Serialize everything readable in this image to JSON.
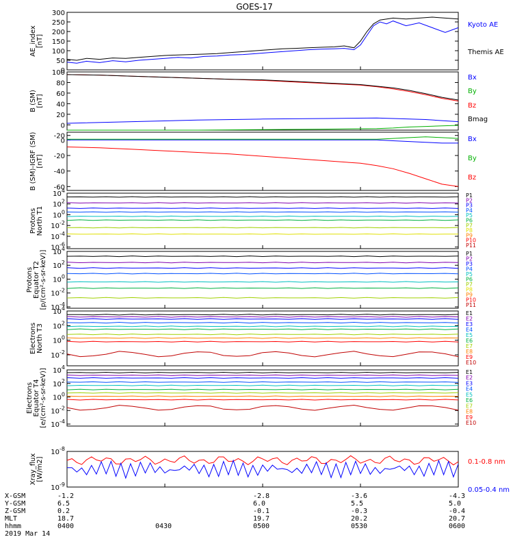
{
  "figure_title": "GOES-17",
  "chart_data": [
    {
      "id": "ae",
      "type": "line",
      "ylabel": [
        "AE_index",
        "[nT]"
      ],
      "ylim": [
        0,
        300
      ],
      "log": false,
      "yticks": [
        300,
        250,
        200,
        150,
        100,
        50,
        0
      ],
      "ytick_labels": [
        "300",
        "250",
        "200",
        "150",
        "100",
        "50",
        "0"
      ],
      "legend_position": "right",
      "series": [
        {
          "name": "Kyoto AE",
          "color": "#0000ff",
          "t": [
            0,
            3,
            6,
            10,
            14,
            18,
            22,
            26,
            30,
            34,
            38,
            42,
            46,
            50,
            54,
            58,
            62,
            66,
            70,
            74,
            78,
            82,
            85,
            88,
            90,
            92,
            94,
            96,
            98,
            100,
            104,
            108,
            112,
            116,
            120
          ],
          "values": [
            40,
            35,
            45,
            38,
            48,
            42,
            50,
            55,
            60,
            65,
            62,
            70,
            72,
            78,
            80,
            85,
            90,
            95,
            100,
            105,
            108,
            110,
            112,
            105,
            130,
            180,
            230,
            250,
            240,
            255,
            230,
            245,
            220,
            195,
            220
          ]
        },
        {
          "name": "Themis AE",
          "color": "#000000",
          "t": [
            0,
            3,
            6,
            10,
            14,
            18,
            22,
            26,
            30,
            34,
            38,
            42,
            46,
            50,
            54,
            58,
            62,
            66,
            70,
            74,
            78,
            82,
            85,
            88,
            90,
            92,
            94,
            96,
            100,
            104,
            108,
            112,
            116,
            120
          ],
          "values": [
            55,
            50,
            60,
            55,
            62,
            60,
            65,
            70,
            75,
            78,
            80,
            82,
            85,
            90,
            95,
            100,
            105,
            110,
            112,
            115,
            118,
            120,
            125,
            115,
            150,
            200,
            240,
            260,
            270,
            265,
            270,
            275,
            270,
            265
          ]
        }
      ]
    },
    {
      "id": "bsm",
      "type": "line",
      "ylabel": [
        "B (SM)",
        "[nT]"
      ],
      "ylim": [
        -10,
        100
      ],
      "log": false,
      "yticks": [
        100,
        80,
        60,
        40,
        20,
        0,
        -20
      ],
      "ytick_labels": [
        "100",
        "80",
        "60",
        "40",
        "20",
        "0",
        "-20"
      ],
      "legend_position": "right",
      "series": [
        {
          "name": "Bx",
          "color": "#0000ff",
          "t": [
            0,
            20,
            40,
            60,
            80,
            95,
            100,
            105,
            110,
            115,
            120
          ],
          "values": [
            3,
            6,
            9,
            11,
            12,
            13,
            12,
            11,
            10,
            8,
            6
          ]
        },
        {
          "name": "By",
          "color": "#00b000",
          "t": [
            0,
            20,
            40,
            60,
            80,
            95,
            100,
            105,
            110,
            115,
            120
          ],
          "values": [
            -10,
            -10,
            -10,
            -9,
            -8,
            -7,
            -6,
            -4,
            -3,
            -2,
            -1
          ]
        },
        {
          "name": "Bz",
          "color": "#ff0000",
          "t": [
            0,
            10,
            20,
            30,
            40,
            50,
            60,
            70,
            80,
            90,
            95,
            100,
            105,
            110,
            115,
            120
          ],
          "values": [
            95,
            94,
            92,
            90,
            88,
            86,
            84,
            81,
            78,
            75,
            72,
            68,
            63,
            57,
            50,
            45
          ]
        },
        {
          "name": "Bmag",
          "color": "#000000",
          "t": [
            0,
            10,
            20,
            30,
            40,
            50,
            60,
            70,
            80,
            90,
            95,
            100,
            105,
            110,
            115,
            120
          ],
          "values": [
            95,
            94,
            92,
            90,
            88,
            86,
            85,
            82,
            79,
            76,
            73,
            70,
            65,
            59,
            52,
            47
          ]
        }
      ]
    },
    {
      "id": "bigrf",
      "type": "line",
      "ylabel": [
        "B (SM)-IGRF (SM)",
        "[nT]"
      ],
      "ylim": [
        -65,
        10
      ],
      "log": false,
      "yticks": [
        0,
        -20,
        -40,
        -60
      ],
      "ytick_labels": [
        "0",
        "-20",
        "-40",
        "-60"
      ],
      "legend_position": "right",
      "series": [
        {
          "name": "Bx",
          "color": "#0000ff",
          "t": [
            0,
            20,
            40,
            60,
            80,
            95,
            100,
            105,
            110,
            115,
            120
          ],
          "values": [
            0,
            0,
            0,
            0,
            0,
            0,
            -1,
            -2,
            -3,
            -4,
            -4
          ]
        },
        {
          "name": "By",
          "color": "#00b000",
          "t": [
            0,
            20,
            40,
            60,
            80,
            95,
            100,
            105,
            110,
            115,
            120
          ],
          "values": [
            1,
            1,
            1,
            1,
            1,
            1,
            2,
            3,
            4,
            3,
            2
          ]
        },
        {
          "name": "Bz",
          "color": "#ff0000",
          "t": [
            0,
            10,
            20,
            30,
            40,
            50,
            60,
            70,
            80,
            90,
            95,
            100,
            105,
            110,
            115,
            120
          ],
          "values": [
            -9,
            -10,
            -12,
            -14,
            -16,
            -18,
            -21,
            -24,
            -27,
            -30,
            -33,
            -37,
            -43,
            -50,
            -57,
            -60
          ]
        }
      ]
    },
    {
      "id": "pn",
      "type": "line",
      "ylabel": [
        "Protons",
        "North T1"
      ],
      "ylim": [
        -6.3,
        4
      ],
      "log": true,
      "yticks": [
        4,
        2,
        0,
        -2,
        -4,
        -6
      ],
      "ytick_labels": [
        "10^4",
        "10^2",
        "10^0",
        "10^-2",
        "10^-4",
        "10^-6"
      ],
      "legend_position": "right",
      "channels": [
        {
          "name": "P1",
          "color": "#000000",
          "level": 3.3
        },
        {
          "name": "P2",
          "color": "#8000b0",
          "level": 2.2
        },
        {
          "name": "P3",
          "color": "#0000ff",
          "level": 1.2
        },
        {
          "name": "P4",
          "color": "#0050ff",
          "level": 0.5
        },
        {
          "name": "P5",
          "color": "#00c0c0",
          "level": -0.3
        },
        {
          "name": "P6",
          "color": "#00b040",
          "level": -1.0
        },
        {
          "name": "P7",
          "color": "#a0d000",
          "level": -2.4
        },
        {
          "name": "P8",
          "color": "#e0e000",
          "level": -3.6
        },
        {
          "name": "P9",
          "color": "#ff8000",
          "level": null
        },
        {
          "name": "P10",
          "color": "#ff0000",
          "level": null
        },
        {
          "name": "P11",
          "color": "#c00000",
          "level": null
        }
      ]
    },
    {
      "id": "pe",
      "type": "line",
      "ylabel": [
        "Protons",
        "Equator T2",
        "[p/(cm²-s-sr-keV)]"
      ],
      "ylim": [
        -4.2,
        4
      ],
      "log": true,
      "yticks": [
        4,
        2,
        0,
        -2,
        -4
      ],
      "ytick_labels": [
        "10^4",
        "10^2",
        "10^0",
        "10^-2",
        "10^-4"
      ],
      "legend_position": "right",
      "channels": [
        {
          "name": "P1",
          "color": "#000000",
          "level": 3.3
        },
        {
          "name": "P2",
          "color": "#8000b0",
          "level": 2.4
        },
        {
          "name": "P3",
          "color": "#0000ff",
          "level": 1.6
        },
        {
          "name": "P4",
          "color": "#0050ff",
          "level": 0.8
        },
        {
          "name": "P5",
          "color": "#00c0c0",
          "level": -0.4
        },
        {
          "name": "P6",
          "color": "#00b040",
          "level": -1.3
        },
        {
          "name": "P7",
          "color": "#a0d000",
          "level": -2.7
        },
        {
          "name": "P8",
          "color": "#e0e000",
          "level": null
        },
        {
          "name": "P9",
          "color": "#ff8000",
          "level": null
        },
        {
          "name": "P10",
          "color": "#ff0000",
          "level": null
        },
        {
          "name": "P11",
          "color": "#c00000",
          "level": null
        }
      ]
    },
    {
      "id": "en",
      "type": "line",
      "ylabel": [
        "Electrons",
        "North T3"
      ],
      "ylim": [
        -3.5,
        4
      ],
      "log": true,
      "yticks": [
        4,
        2,
        0,
        -2
      ],
      "ytick_labels": [
        "10^4",
        "10^2",
        "10^0",
        "10^-2"
      ],
      "legend_position": "right",
      "channels": [
        {
          "name": "E1",
          "color": "#000000",
          "level": 3.5
        },
        {
          "name": "E2",
          "color": "#8000b0",
          "level": 3.2
        },
        {
          "name": "E3",
          "color": "#0000ff",
          "level": 2.9
        },
        {
          "name": "E4",
          "color": "#0050ff",
          "level": 2.4
        },
        {
          "name": "E5",
          "color": "#00c0c0",
          "level": 1.9
        },
        {
          "name": "E6",
          "color": "#00b040",
          "level": 1.5
        },
        {
          "name": "E7",
          "color": "#a0d000",
          "level": 0.8
        },
        {
          "name": "E8",
          "color": "#ff8000",
          "level": 0.3
        },
        {
          "name": "E9",
          "color": "#ff0000",
          "level": -0.2
        },
        {
          "name": "E10",
          "color": "#c00000",
          "level": -1.9
        }
      ]
    },
    {
      "id": "ee",
      "type": "line",
      "ylabel": [
        "Electrons",
        "Equator T4",
        "[e/(cm²-s-sr-keV)]"
      ],
      "ylim": [
        -4.3,
        4
      ],
      "log": true,
      "yticks": [
        4,
        2,
        0,
        -2,
        -4
      ],
      "ytick_labels": [
        "10^4",
        "10^2",
        "10^0",
        "10^-2",
        "10^-4"
      ],
      "legend_position": "right",
      "channels": [
        {
          "name": "E1",
          "color": "#000000",
          "level": 3.6
        },
        {
          "name": "E2",
          "color": "#8000b0",
          "level": 3.2
        },
        {
          "name": "E3",
          "color": "#0000ff",
          "level": 2.8
        },
        {
          "name": "E4",
          "color": "#0050ff",
          "level": 2.2
        },
        {
          "name": "E5",
          "color": "#00c0c0",
          "level": 1.7
        },
        {
          "name": "E6",
          "color": "#00b040",
          "level": 1.1
        },
        {
          "name": "E7",
          "color": "#a0d000",
          "level": 0.6
        },
        {
          "name": "E8",
          "color": "#ff8000",
          "level": 0.1
        },
        {
          "name": "E9",
          "color": "#ff0000",
          "level": -0.4
        },
        {
          "name": "E10",
          "color": "#c00000",
          "level": -1.6
        }
      ]
    },
    {
      "id": "xray",
      "type": "line",
      "ylabel": [
        "Xray_flux",
        "[W/m2]"
      ],
      "ylim": [
        -9,
        -8
      ],
      "log": true,
      "yticks": [
        -8,
        -9
      ],
      "ytick_labels": [
        "10^-8",
        "10^-9"
      ],
      "legend_position": "right",
      "series": [
        {
          "name": "0.1-0.8 nm",
          "color": "#ff0000",
          "level": -8.25
        },
        {
          "name": "0.05-0.4 nm",
          "color": "#0000ff",
          "level": -8.5
        }
      ]
    }
  ],
  "time_axis": {
    "ticks": [
      {
        "t": 0,
        "xgsm": "-1.2",
        "ygsm": "6.5",
        "zgsm": "0.2",
        "mlt": "18.7",
        "hhmm": "0400"
      },
      {
        "t": 30,
        "xgsm": "",
        "ygsm": "",
        "zgsm": "",
        "mlt": "",
        "hhmm": "0430"
      },
      {
        "t": 60,
        "xgsm": "-2.8",
        "ygsm": "6.0",
        "zgsm": "-0.1",
        "mlt": "19.7",
        "hhmm": "0500"
      },
      {
        "t": 90,
        "xgsm": "-3.6",
        "ygsm": "5.5",
        "zgsm": "-0.3",
        "mlt": "20.2",
        "hhmm": "0530"
      },
      {
        "t": 120,
        "xgsm": "-4.3",
        "ygsm": "5.0",
        "zgsm": "-0.4",
        "mlt": "20.7",
        "hhmm": "0600"
      }
    ],
    "row_labels": [
      "X-GSM",
      "Y-GSM",
      "Z-GSM",
      "MLT",
      "hhmm"
    ],
    "date": "2019 Mar 14"
  }
}
